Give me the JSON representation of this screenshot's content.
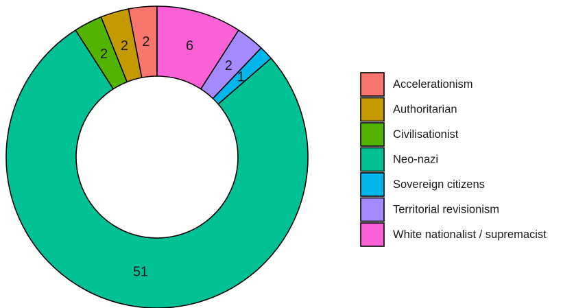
{
  "chart_data": {
    "type": "pie",
    "subtype": "donut",
    "title": "",
    "legend_position": "right",
    "categories": [
      "Acceleration­ism",
      "Authoritarian",
      "Civilisationist",
      "Neo-nazi",
      "Sovereign citizens",
      "Territorial revisionism",
      "White nationalist / supremacist"
    ],
    "values": [
      2,
      2,
      2,
      51,
      1,
      2,
      6
    ],
    "colors": [
      "#F8766D",
      "#C49A00",
      "#53B400",
      "#00C094",
      "#00B6EB",
      "#A58AFF",
      "#FB61D7"
    ],
    "slice_order": [
      "Acceleration­ism",
      "Authoritarian",
      "Civilisationist",
      "Neo-nazi",
      "Sovereign citizens",
      "Territorial revisionism",
      "White nationalist / supremacist"
    ],
    "direction": "counterclockwise",
    "start": "top"
  }
}
